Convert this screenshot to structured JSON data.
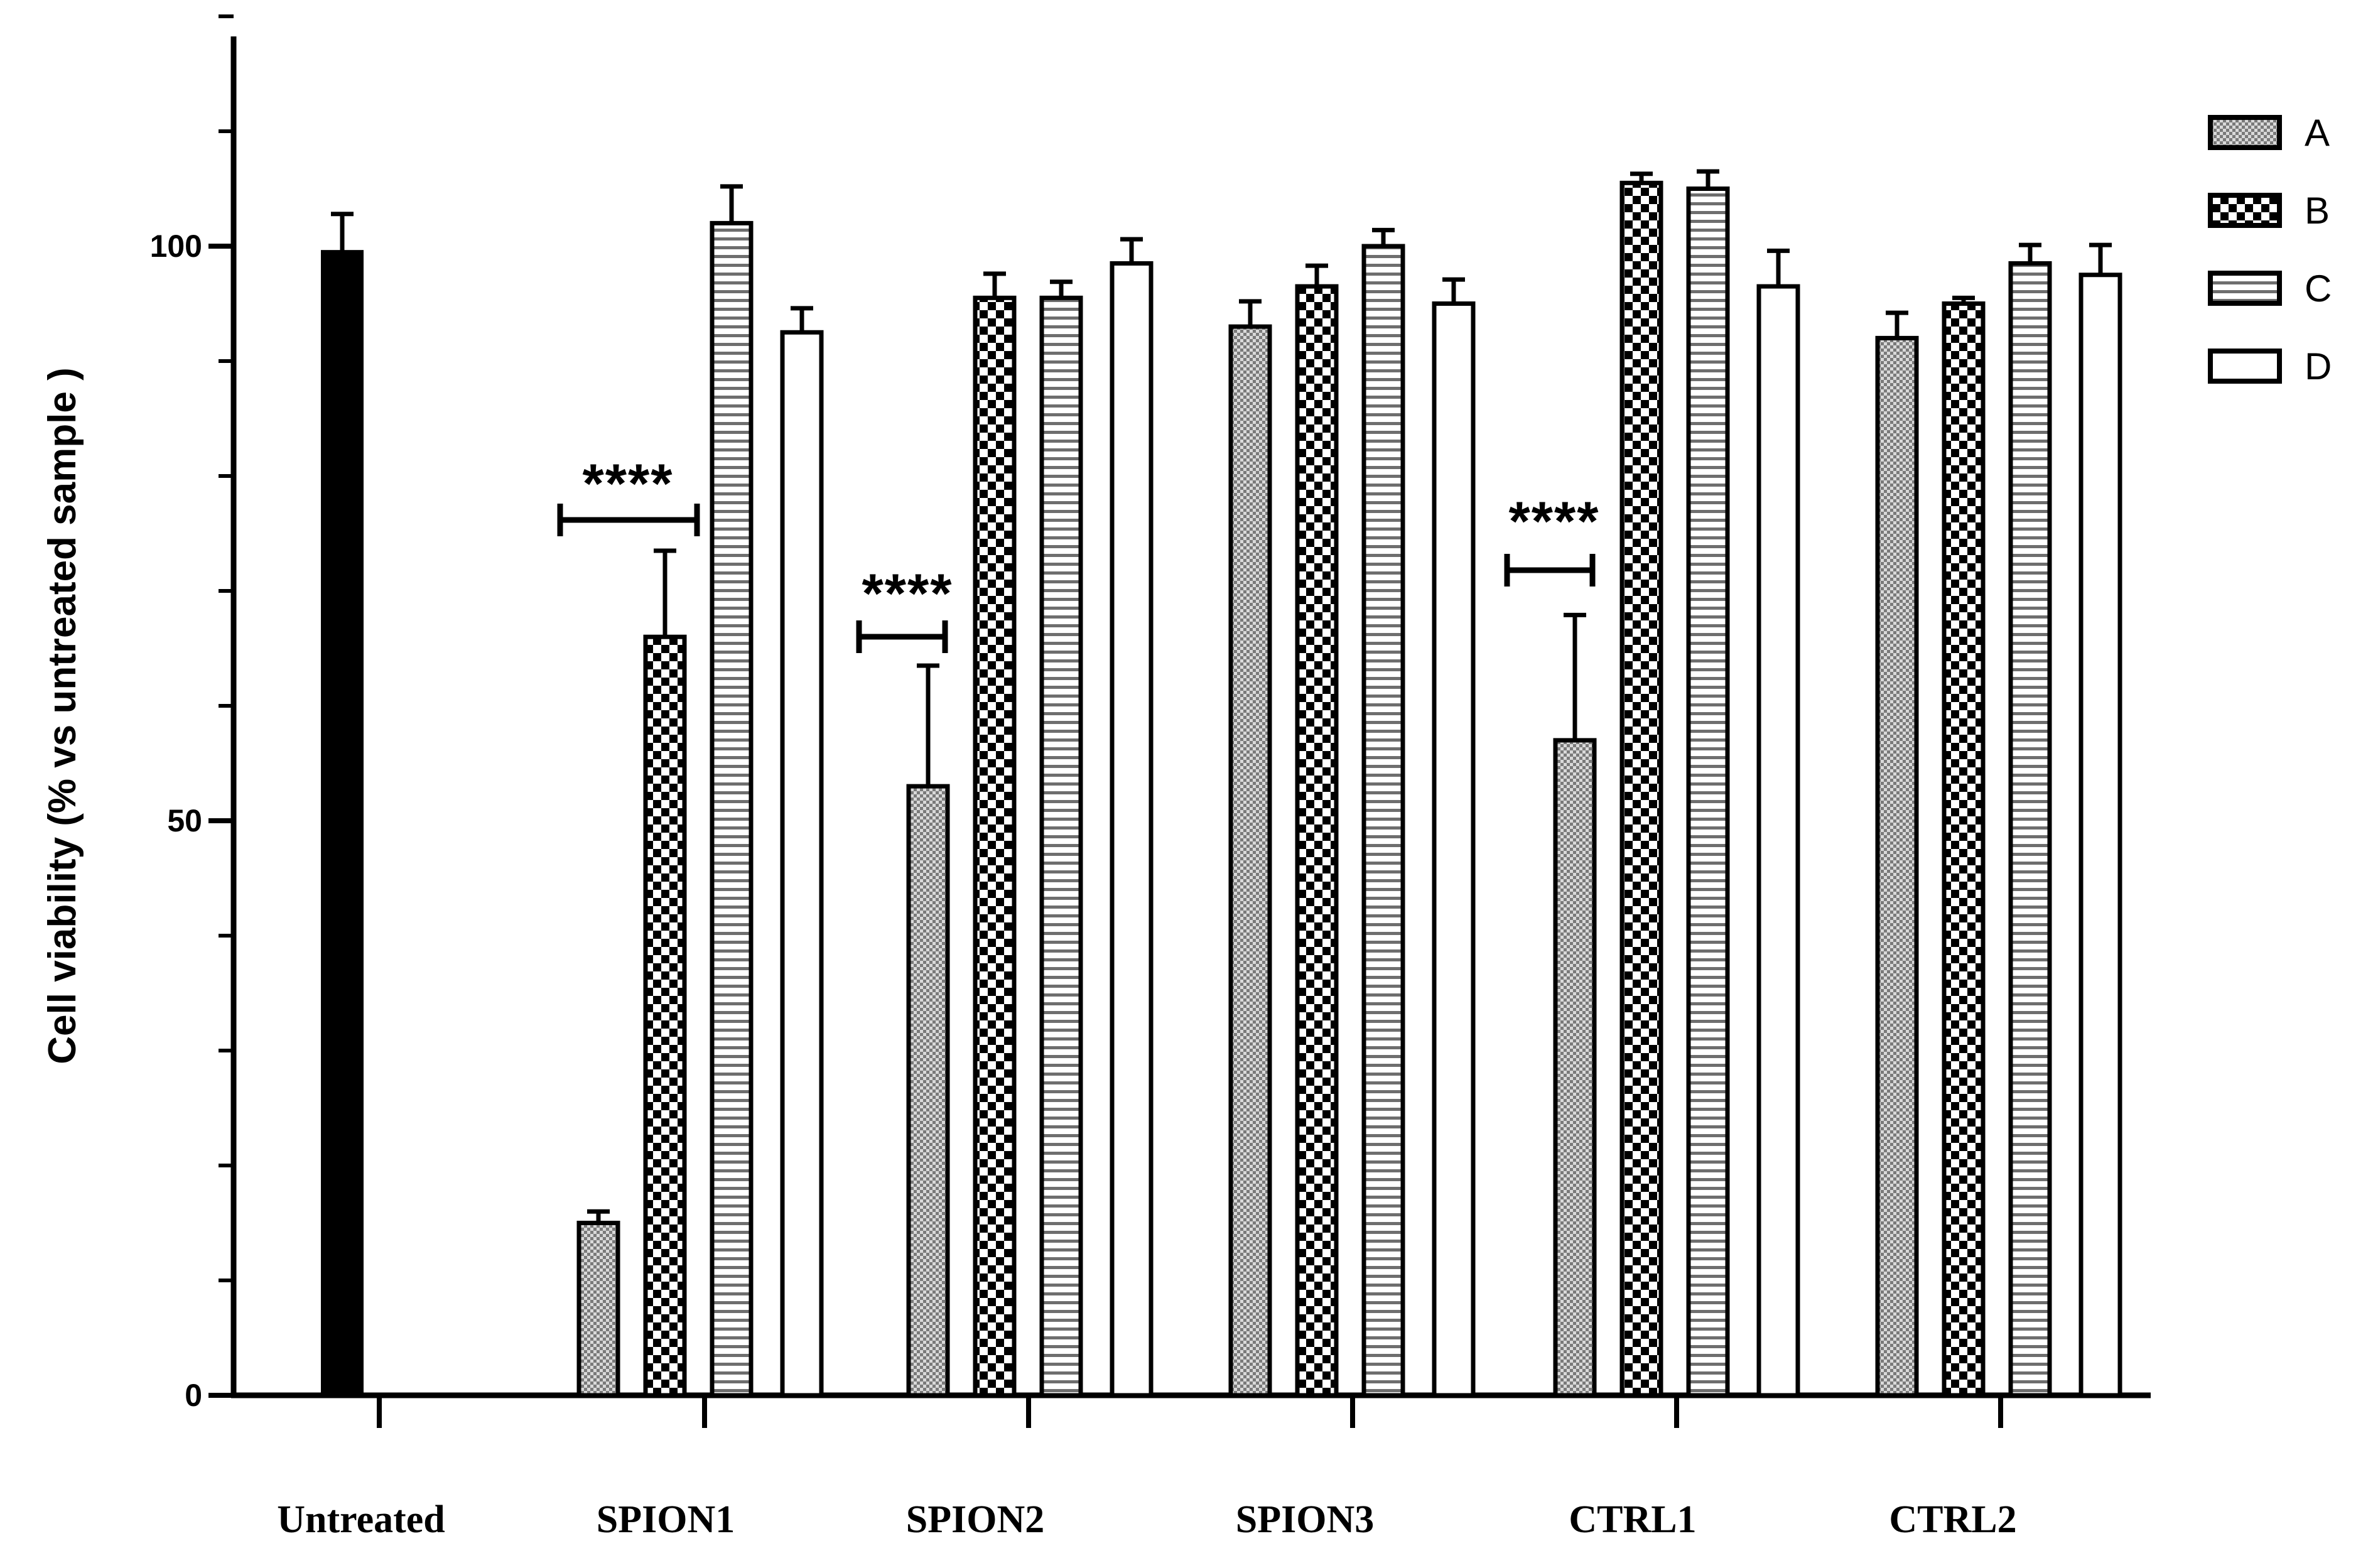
{
  "chart_data": {
    "type": "bar",
    "title": "",
    "xlabel": "",
    "ylabel": "Cell viability (% vs untreated sample )",
    "ylim": [
      0,
      120
    ],
    "yticks": [
      0,
      50,
      100
    ],
    "grid": false,
    "legend": {
      "placement": "top-right",
      "entries": [
        {
          "name": "A",
          "pattern": "fine-dots"
        },
        {
          "name": "B",
          "pattern": "checker"
        },
        {
          "name": "C",
          "pattern": "horizontal-stripes"
        },
        {
          "name": "D",
          "pattern": "empty"
        }
      ]
    },
    "categories": [
      "Untreated",
      "SPION1",
      "SPION2",
      "SPION3",
      "CTRL1",
      "CTRL2"
    ],
    "untreated": {
      "value": 99.5,
      "error": 3.3,
      "color": "#000000"
    },
    "series": [
      {
        "name": "A",
        "values": [
          null,
          15,
          53,
          93,
          57,
          92
        ],
        "errors": [
          null,
          1,
          10.5,
          2.2,
          10.9,
          2.2
        ]
      },
      {
        "name": "B",
        "values": [
          null,
          66,
          95.5,
          96.5,
          105.5,
          95
        ],
        "errors": [
          null,
          7.5,
          2.1,
          1.8,
          0.8,
          0.5
        ]
      },
      {
        "name": "C",
        "values": [
          null,
          102,
          95.5,
          100,
          105,
          98.5
        ],
        "errors": [
          null,
          3.2,
          1.4,
          1.4,
          1.5,
          1.6
        ]
      },
      {
        "name": "D",
        "values": [
          null,
          92.5,
          98.5,
          95,
          96.5,
          97.5
        ],
        "errors": [
          null,
          2.1,
          2.1,
          2.1,
          3.1,
          2.6
        ]
      }
    ],
    "annotations": [
      {
        "text": "****",
        "category": "SPION1",
        "between": [
          "A",
          "B"
        ]
      },
      {
        "text": "****",
        "category": "SPION2",
        "between": [
          "A",
          "B"
        ]
      },
      {
        "text": "****",
        "category": "CTRL1",
        "between": [
          "A",
          "B"
        ]
      }
    ]
  }
}
